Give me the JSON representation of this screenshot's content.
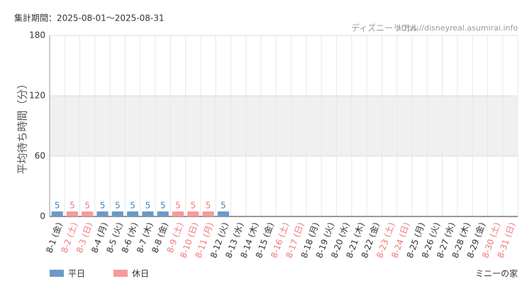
{
  "chart_data": {
    "type": "bar",
    "period": "集計期間：2025-08-01～2025-08-31",
    "source_name": "ディズニーリアル",
    "source_url": "https://disneyreal.asumirai.info",
    "y_label": "平均待ち時間（分）",
    "footer": "ミニーの家",
    "categories": [
      "8-1 (金)",
      "8-2 (土)",
      "8-3 (日)",
      "8-4 (月)",
      "8-5 (火)",
      "8-6 (水)",
      "8-7 (木)",
      "8-8 (金)",
      "8-9 (土)",
      "8-10 (日)",
      "8-11 (月)",
      "8-12 (火)",
      "8-13 (水)",
      "8-14 (木)",
      "8-15 (金)",
      "8-16 (土)",
      "8-17 (日)",
      "8-18 (月)",
      "8-19 (火)",
      "8-20 (水)",
      "8-21 (木)",
      "8-22 (金)",
      "8-23 (土)",
      "8-24 (日)",
      "8-25 (月)",
      "8-26 (火)",
      "8-27 (水)",
      "8-28 (木)",
      "8-29 (金)",
      "8-30 (土)",
      "8-31 (日)"
    ],
    "category_label_colors": [
      "#333333",
      "#f07878",
      "#f07878",
      "#333333",
      "#333333",
      "#333333",
      "#333333",
      "#333333",
      "#f07878",
      "#f07878",
      "#f07878",
      "#333333",
      "#333333",
      "#333333",
      "#333333",
      "#f07878",
      "#f07878",
      "#333333",
      "#333333",
      "#333333",
      "#333333",
      "#333333",
      "#f07878",
      "#f07878",
      "#333333",
      "#333333",
      "#333333",
      "#333333",
      "#333333",
      "#f07878",
      "#f07878"
    ],
    "series": [
      {
        "name": "平日",
        "color": "#6b9ac8",
        "label_color": "#4a7fb5",
        "values": [
          5,
          null,
          null,
          5,
          5,
          5,
          5,
          5,
          null,
          null,
          null,
          5,
          null,
          null,
          null,
          null,
          null,
          null,
          null,
          null,
          null,
          null,
          null,
          null,
          null,
          null,
          null,
          null,
          null,
          null,
          null
        ]
      },
      {
        "name": "休日",
        "color": "#f79a9a",
        "label_color": "#f07878",
        "values": [
          null,
          5,
          5,
          null,
          null,
          null,
          null,
          null,
          5,
          5,
          5,
          null,
          null,
          null,
          null,
          null,
          null,
          null,
          null,
          null,
          null,
          null,
          null,
          null,
          null,
          null,
          null,
          null,
          null,
          null,
          null
        ]
      }
    ],
    "ylim": [
      0,
      180
    ],
    "yticks": [
      0,
      60,
      120,
      180
    ],
    "shaded_band": [
      60,
      120
    ],
    "grid": true
  }
}
